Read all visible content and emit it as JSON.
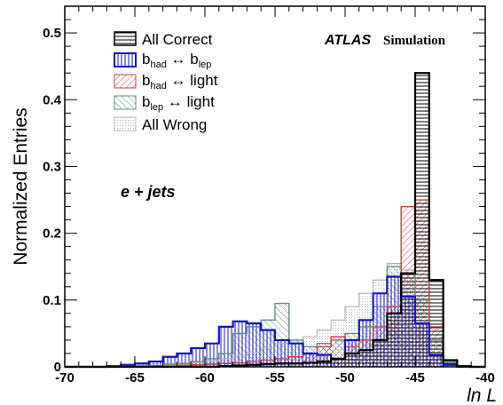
{
  "chart_data": {
    "type": "histogram",
    "ylabel": "Normalized Entries",
    "xlabel": "ln L",
    "xlim": [
      -70,
      -40
    ],
    "ylim": [
      0,
      0.54
    ],
    "x_ticks": [
      "-70",
      "-65",
      "-60",
      "-55",
      "-50",
      "-45",
      "-40"
    ],
    "y_ticks": [
      "0",
      "0.1",
      "0.2",
      "0.3",
      "0.4",
      "0.5"
    ],
    "atlas_label": "ATLAS",
    "atlas_sublabel": "Simulation",
    "annotation": "e + jets",
    "legend_position": "top-left",
    "legend": [
      {
        "key": "all_correct",
        "base": "All Correct",
        "sub1": "",
        "mid": "",
        "sub2": ""
      },
      {
        "key": "bhad_blep",
        "base": "b",
        "sub1": "had",
        "mid": " ↔ b",
        "sub2": "lep"
      },
      {
        "key": "bhad_light",
        "base": "b",
        "sub1": "had",
        "mid": " ↔ light",
        "sub2": ""
      },
      {
        "key": "blep_light",
        "base": "b",
        "sub1": "lep",
        "mid": " ↔ light",
        "sub2": ""
      },
      {
        "key": "all_wrong",
        "base": "All Wrong",
        "sub1": "",
        "mid": "",
        "sub2": ""
      }
    ],
    "bins": [
      -70,
      -69,
      -68,
      -67,
      -66,
      -65,
      -64,
      -63,
      -62,
      -61,
      -60,
      -59,
      -58,
      -57,
      -56,
      -55,
      -54,
      -53,
      -52,
      -51,
      -50,
      -49,
      -48,
      -47,
      -46,
      -45,
      -44,
      -43,
      -42,
      -41,
      -40
    ],
    "series": [
      {
        "key": "all_wrong",
        "color": "#b4b4b4",
        "hatch": "dots",
        "values": [
          0,
          0,
          0,
          0,
          0.001,
          0.002,
          0.002,
          0.003,
          0.004,
          0.006,
          0.009,
          0.012,
          0.017,
          0.022,
          0.028,
          0.035,
          0.04,
          0.045,
          0.055,
          0.07,
          0.09,
          0.11,
          0.13,
          0.155,
          0.145,
          0.1,
          0.04,
          0.008,
          0.001,
          0,
          0
        ]
      },
      {
        "key": "blep_light",
        "color": "#5e8c80",
        "hatch": "diag-up",
        "values": [
          0,
          0,
          0,
          0,
          0,
          0.001,
          0.002,
          0.004,
          0.005,
          0.008,
          0.012,
          0.02,
          0.05,
          0.06,
          0.07,
          0.095,
          0.04,
          0.03,
          0.035,
          0.04,
          0.05,
          0.06,
          0.09,
          0.15,
          0.14,
          0.1,
          0.04,
          0.008,
          0.001,
          0,
          0
        ]
      },
      {
        "key": "bhad_light",
        "color": "#c83c3c",
        "hatch": "diag-down",
        "values": [
          0,
          0,
          0,
          0,
          0,
          0,
          0.001,
          0.001,
          0.002,
          0.003,
          0.004,
          0.005,
          0.006,
          0.008,
          0.01,
          0.012,
          0.015,
          0.02,
          0.03,
          0.045,
          0.03,
          0.04,
          0.06,
          0.09,
          0.24,
          0.25,
          0.06,
          0.01,
          0.001,
          0,
          0
        ]
      },
      {
        "key": "bhad_blep",
        "color": "#1414c8",
        "hatch": "vertical",
        "values": [
          0,
          0,
          0,
          0.001,
          0.003,
          0.005,
          0.008,
          0.015,
          0.02,
          0.028,
          0.035,
          0.06,
          0.068,
          0.065,
          0.055,
          0.04,
          0.035,
          0.02,
          0.018,
          0.012,
          0.04,
          0.07,
          0.11,
          0.135,
          0.105,
          0.065,
          0.018,
          0.003,
          0,
          0,
          0
        ]
      },
      {
        "key": "all_correct",
        "color": "#000000",
        "hatch": "horizontal",
        "values": [
          0,
          0,
          0,
          0,
          0,
          0,
          0,
          0,
          0,
          0,
          0,
          0.001,
          0.002,
          0.003,
          0.004,
          0.005,
          0.005,
          0.006,
          0.008,
          0.012,
          0.02,
          0.025,
          0.04,
          0.08,
          0.14,
          0.44,
          0.13,
          0.01,
          0.001,
          0,
          0
        ]
      }
    ]
  }
}
